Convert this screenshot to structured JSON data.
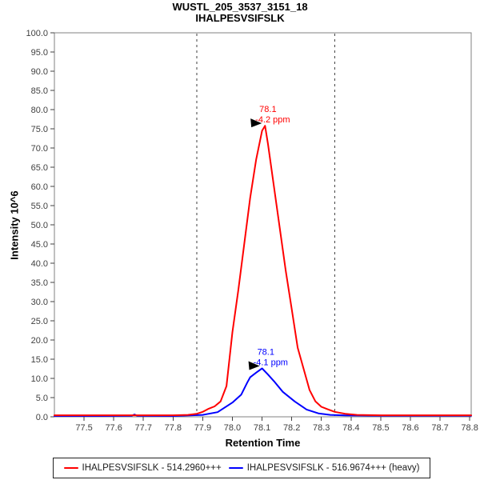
{
  "title": {
    "line1": "WUSTL_205_3537_3151_18",
    "line2": "IHALPESVSIFSLK"
  },
  "axes": {
    "y_label": "Intensity 10^6",
    "x_label": "Retention Time"
  },
  "legend": {
    "items": [
      {
        "label": "IHALPESVSIFSLK - 514.2960+++",
        "color": "#ff0000"
      },
      {
        "label": "IHALPESVSIFSLK - 516.9674+++ (heavy)",
        "color": "#0000ff"
      }
    ]
  },
  "colors": {
    "plot_border": "#808080",
    "tick": "#404040",
    "boundary_line": "#404040",
    "annotation_arrow": "#000000"
  },
  "chart_data": {
    "type": "line",
    "title": "WUSTL_205_3537_3151_18",
    "subtitle": "IHALPESVSIFSLK",
    "xlabel": "Retention Time",
    "ylabel": "Intensity 10^6",
    "xlim": [
      77.4,
      78.805
    ],
    "ylim": [
      0,
      100
    ],
    "xticks": {
      "start": 77.5,
      "end": 78.8,
      "step": 0.1,
      "format_decimals": 1
    },
    "yticks": {
      "start": 0,
      "end": 100,
      "step": 5,
      "format_decimals": 1
    },
    "grid": false,
    "legend_position": "bottom",
    "integration_boundaries": [
      77.88,
      78.345
    ],
    "series": [
      {
        "name": "IHALPESVSIFSLK - 516.9674+++ (heavy)",
        "color": "#0000ff",
        "points": [
          [
            77.4,
            0.2
          ],
          [
            77.55,
            0.2
          ],
          [
            77.66,
            0.25
          ],
          [
            77.67,
            0.6
          ],
          [
            77.68,
            0.25
          ],
          [
            77.8,
            0.2
          ],
          [
            77.9,
            0.5
          ],
          [
            77.95,
            1.2
          ],
          [
            78.0,
            3.7
          ],
          [
            78.03,
            5.8
          ],
          [
            78.05,
            8.9
          ],
          [
            78.06,
            10.3
          ],
          [
            78.08,
            11.5
          ],
          [
            78.1,
            12.6
          ],
          [
            78.12,
            11.0
          ],
          [
            78.14,
            9.3
          ],
          [
            78.17,
            6.5
          ],
          [
            78.21,
            4.0
          ],
          [
            78.25,
            1.9
          ],
          [
            78.29,
            0.9
          ],
          [
            78.33,
            0.5
          ],
          [
            78.38,
            0.35
          ],
          [
            78.5,
            0.3
          ],
          [
            78.65,
            0.3
          ],
          [
            78.805,
            0.3
          ]
        ]
      },
      {
        "name": "IHALPESVSIFSLK - 514.2960+++",
        "color": "#ff0000",
        "points": [
          [
            77.4,
            0.4
          ],
          [
            77.5,
            0.4
          ],
          [
            77.6,
            0.4
          ],
          [
            77.7,
            0.4
          ],
          [
            77.8,
            0.4
          ],
          [
            77.85,
            0.5
          ],
          [
            77.88,
            0.8
          ],
          [
            77.9,
            1.3
          ],
          [
            77.92,
            2.1
          ],
          [
            77.94,
            2.7
          ],
          [
            77.96,
            4.0
          ],
          [
            77.98,
            8.0
          ],
          [
            78.0,
            22
          ],
          [
            78.02,
            33
          ],
          [
            78.04,
            45
          ],
          [
            78.06,
            57
          ],
          [
            78.08,
            67
          ],
          [
            78.1,
            74.5
          ],
          [
            78.11,
            75.8
          ],
          [
            78.12,
            71
          ],
          [
            78.14,
            60
          ],
          [
            78.16,
            49
          ],
          [
            78.18,
            38
          ],
          [
            78.2,
            28
          ],
          [
            78.22,
            18
          ],
          [
            78.24,
            12.5
          ],
          [
            78.26,
            7
          ],
          [
            78.28,
            4
          ],
          [
            78.3,
            2.6
          ],
          [
            78.32,
            2.0
          ],
          [
            78.345,
            1.3
          ],
          [
            78.38,
            0.8
          ],
          [
            78.42,
            0.5
          ],
          [
            78.5,
            0.4
          ],
          [
            78.6,
            0.4
          ],
          [
            78.7,
            0.4
          ],
          [
            78.805,
            0.4
          ]
        ]
      }
    ],
    "annotations": [
      {
        "series": "light",
        "color": "#ff0000",
        "x": 78.107,
        "y": 75.8,
        "rt_label": "78.1",
        "ppm_label": "-4.2 ppm",
        "marker": "right-arrow"
      },
      {
        "series": "heavy",
        "color": "#0000ff",
        "x": 78.1,
        "y": 12.6,
        "rt_label": "78.1",
        "ppm_label": "-4.1 ppm",
        "marker": "right-arrow"
      }
    ]
  }
}
